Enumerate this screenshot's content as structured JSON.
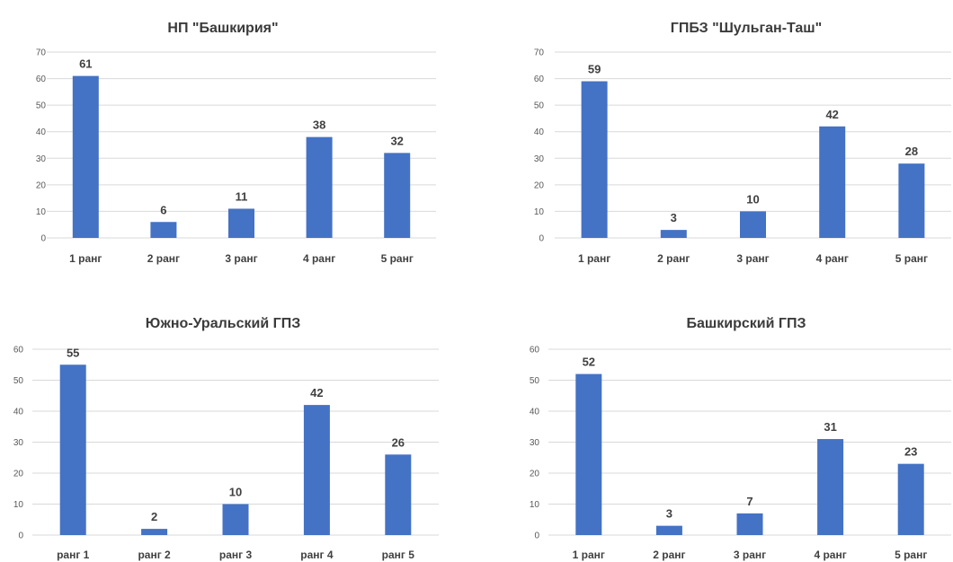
{
  "chart_data": [
    {
      "type": "bar",
      "title": "НП \"Башкирия\"",
      "categories": [
        "1 ранг",
        "2 ранг",
        "3 ранг",
        "4 ранг",
        "5 ранг"
      ],
      "values": [
        61,
        6,
        11,
        38,
        32
      ],
      "ylim": [
        0,
        70
      ],
      "yticks": [
        0,
        10,
        20,
        30,
        40,
        50,
        60,
        70
      ],
      "grid": true,
      "color": "#4472c4"
    },
    {
      "type": "bar",
      "title": "ГПБЗ \"Шульган-Таш\"",
      "categories": [
        "1 ранг",
        "2 ранг",
        "3 ранг",
        "4 ранг",
        "5 ранг"
      ],
      "values": [
        59,
        3,
        10,
        42,
        28
      ],
      "ylim": [
        0,
        70
      ],
      "yticks": [
        0,
        10,
        20,
        30,
        40,
        50,
        60,
        70
      ],
      "grid": true,
      "color": "#4472c4"
    },
    {
      "type": "bar",
      "title": "Южно-Уральский  ГПЗ",
      "categories": [
        "ранг 1",
        "ранг 2",
        "ранг 3",
        "ранг 4",
        "ранг 5"
      ],
      "values": [
        55,
        2,
        10,
        42,
        26
      ],
      "ylim": [
        0,
        60
      ],
      "yticks": [
        0,
        10,
        20,
        30,
        40,
        50,
        60
      ],
      "grid": true,
      "color": "#4472c4"
    },
    {
      "type": "bar",
      "title": "Башкирский ГПЗ",
      "categories": [
        "1 ранг",
        "2 ранг",
        "3 ранг",
        "4 ранг",
        "5 ранг"
      ],
      "values": [
        52,
        3,
        7,
        31,
        23
      ],
      "ylim": [
        0,
        60
      ],
      "yticks": [
        0,
        10,
        20,
        30,
        40,
        50,
        60
      ],
      "grid": true,
      "color": "#4472c4"
    }
  ]
}
